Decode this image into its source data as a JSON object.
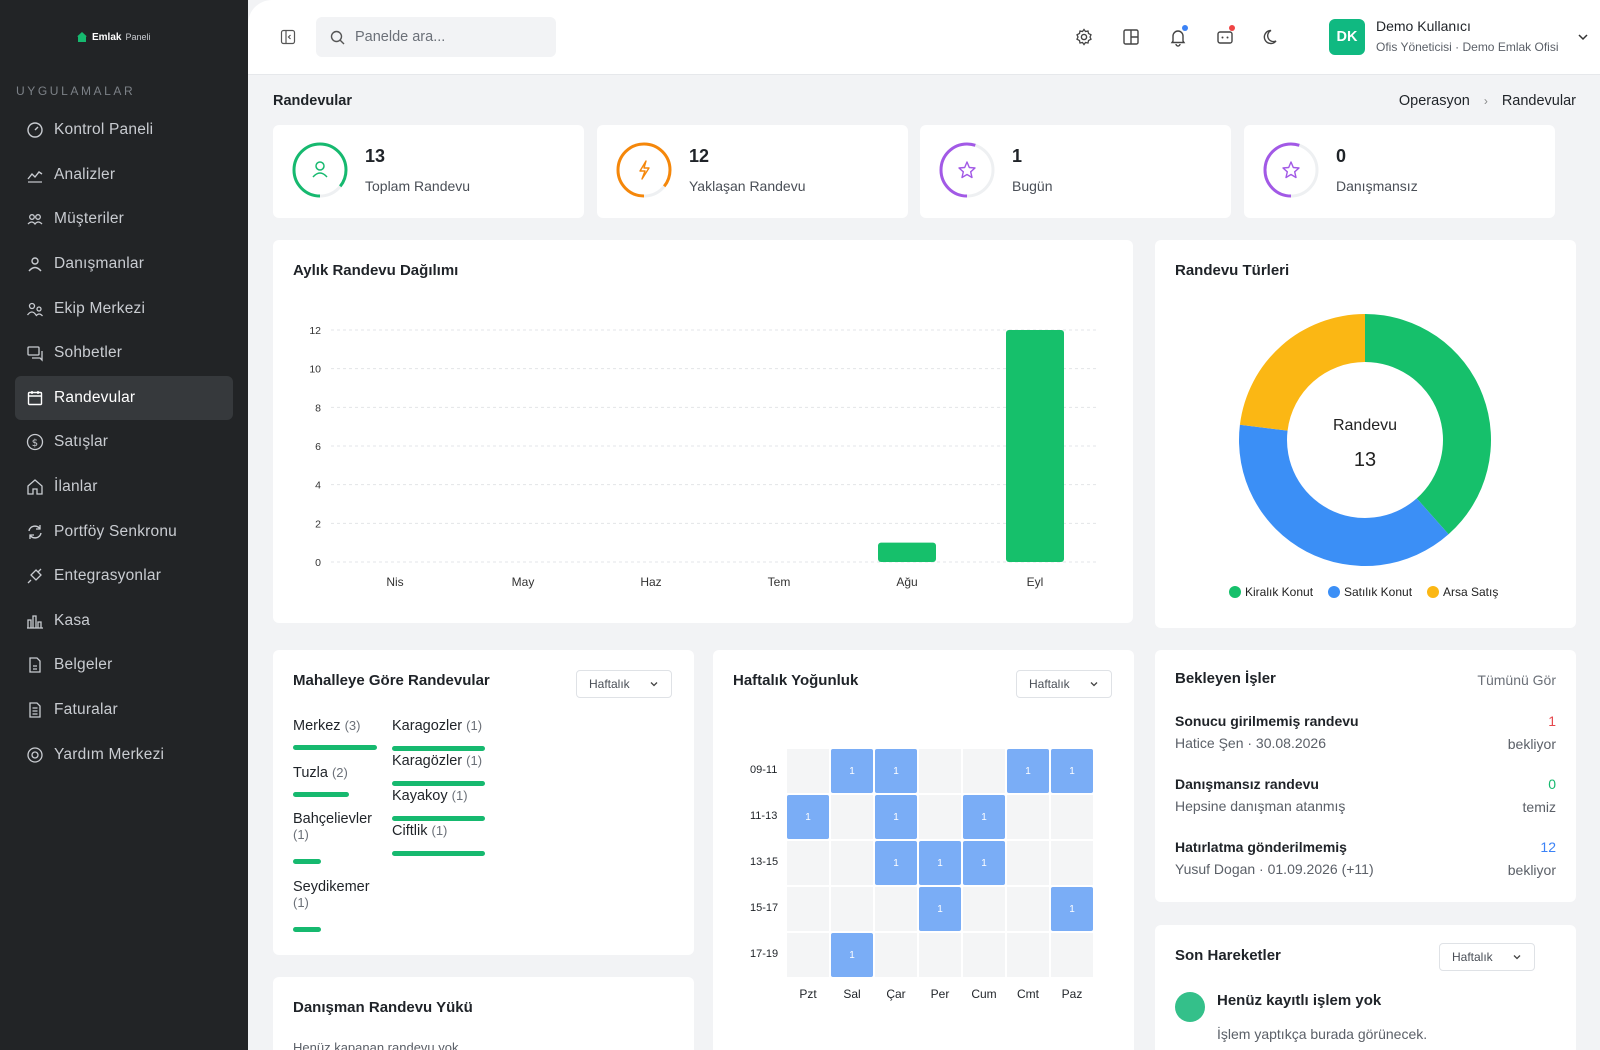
{
  "brand": {
    "name": "Emlak",
    "suffix": "Paneli"
  },
  "sidebar": {
    "section": "UYGULAMALAR",
    "items": [
      {
        "label": "Kontrol Paneli",
        "icon": "dashboard-icon"
      },
      {
        "label": "Analizler",
        "icon": "analytics-icon"
      },
      {
        "label": "Müşteriler",
        "icon": "customers-icon"
      },
      {
        "label": "Danışmanlar",
        "icon": "user-icon"
      },
      {
        "label": "Ekip Merkezi",
        "icon": "team-icon"
      },
      {
        "label": "Sohbetler",
        "icon": "chat-icon"
      },
      {
        "label": "Randevular",
        "icon": "calendar-icon",
        "active": true
      },
      {
        "label": "Satışlar",
        "icon": "dollar-icon"
      },
      {
        "label": "İlanlar",
        "icon": "home-icon"
      },
      {
        "label": "Portföy Senkronu",
        "icon": "sync-icon"
      },
      {
        "label": "Entegrasyonlar",
        "icon": "plug-icon"
      },
      {
        "label": "Kasa",
        "icon": "cash-icon"
      },
      {
        "label": "Belgeler",
        "icon": "document-icon"
      },
      {
        "label": "Faturalar",
        "icon": "invoice-icon"
      },
      {
        "label": "Yardım Merkezi",
        "icon": "help-icon"
      }
    ]
  },
  "topbar": {
    "search_placeholder": "Panelde ara...",
    "user": {
      "initials": "DK",
      "name": "Demo Kullanıcı",
      "role": "Ofis Yöneticisi · Demo Emlak Ofisi"
    }
  },
  "page": {
    "title": "Randevular",
    "breadcrumb": [
      "Operasyon",
      "Randevular"
    ]
  },
  "stats": [
    {
      "value": "13",
      "label": "Toplam Randevu",
      "color": "#16b96f",
      "icon": "user-icon"
    },
    {
      "value": "12",
      "label": "Yaklaşan Randevu",
      "color": "#f5870a",
      "icon": "bolt-icon"
    },
    {
      "value": "1",
      "label": "Bugün",
      "color": "#a259e6",
      "icon": "star-icon"
    },
    {
      "value": "0",
      "label": "Danışmansız",
      "color": "#a259e6",
      "icon": "star-icon"
    }
  ],
  "monthly": {
    "title": "Aylık Randevu Dağılımı"
  },
  "chart_data": [
    {
      "type": "bar",
      "title": "Aylık Randevu Dağılımı",
      "categories": [
        "Nis",
        "May",
        "Haz",
        "Tem",
        "Ağu",
        "Eyl"
      ],
      "values": [
        0,
        0,
        0,
        0,
        1,
        12
      ],
      "yticks": [
        0,
        2,
        4,
        6,
        8,
        10,
        12
      ],
      "ylim": [
        0,
        12
      ],
      "color": "#16c06b",
      "grid": true
    },
    {
      "type": "pie",
      "title": "Randevu Türleri",
      "center_label": "Randevu",
      "center_value": "13",
      "slices": [
        {
          "name": "Kiralık Konut",
          "value": 5,
          "color": "#16c06b"
        },
        {
          "name": "Satılık Konut",
          "value": 5,
          "color": "#3b8ff6"
        },
        {
          "name": "Arsa Satış",
          "value": 3,
          "color": "#fbb714"
        }
      ],
      "legend": "bottom"
    },
    {
      "type": "heatmap",
      "title": "Haftalık Yoğunluk",
      "x": [
        "Pzt",
        "Sal",
        "Çar",
        "Per",
        "Cum",
        "Cmt",
        "Paz"
      ],
      "y": [
        "09-11",
        "11-13",
        "13-15",
        "15-17",
        "17-19"
      ],
      "values": [
        [
          0,
          1,
          1,
          0,
          0,
          1,
          1
        ],
        [
          1,
          0,
          1,
          0,
          1,
          0,
          0
        ],
        [
          0,
          0,
          1,
          1,
          1,
          0,
          0
        ],
        [
          0,
          0,
          0,
          1,
          0,
          0,
          1
        ],
        [
          0,
          1,
          0,
          0,
          0,
          0,
          0
        ]
      ]
    }
  ],
  "types": {
    "title": "Randevu Türleri"
  },
  "neighborhood": {
    "title": "Mahalleye Göre Randevular",
    "filter": "Haftalık",
    "items": [
      {
        "name": "Merkez",
        "count": "(3)",
        "fill": 1.0
      },
      {
        "name": "Tuzla",
        "count": "(2)",
        "fill": 0.67
      },
      {
        "name": "Bahçelievler",
        "count": "(1)",
        "fill": 0.33
      },
      {
        "name": "Seydikemer",
        "count": "(1)",
        "fill": 0.33
      },
      {
        "name": "Karagozler",
        "count": "(1)",
        "fill": 1.0
      },
      {
        "name": "Karagözler",
        "count": "(1)",
        "fill": 1.0
      },
      {
        "name": "Kayakoy",
        "count": "(1)",
        "fill": 1.0
      },
      {
        "name": "Ciftlik",
        "count": "(1)",
        "fill": 1.0
      }
    ]
  },
  "weekly": {
    "title": "Haftalık Yoğunluk",
    "filter": "Haftalık"
  },
  "pending": {
    "title": "Bekleyen İşler",
    "see_all": "Tümünü Gör",
    "items": [
      {
        "title": "Sonucu girilmemiş randevu",
        "sub": "Hatice Şen · 30.08.2026",
        "count": "1",
        "status": "bekliyor",
        "color": "#e5484d"
      },
      {
        "title": "Danışmansız randevu",
        "sub": "Hepsine danışman atanmış",
        "count": "0",
        "status": "temiz",
        "color": "#16b96f"
      },
      {
        "title": "Hatırlatma gönderilmemiş",
        "sub": "Yusuf Dogan · 01.09.2026 (+11)",
        "count": "12",
        "status": "bekliyor",
        "color": "#3b82f6"
      }
    ]
  },
  "activity": {
    "title": "Son Hareketler",
    "filter": "Haftalık",
    "empty_title": "Henüz kayıtlı işlem yok",
    "empty_sub": "İşlem yaptıkça burada görünecek."
  },
  "advisor_load": {
    "title": "Danışman Randevu Yükü",
    "empty": "Henüz kapanan randevu yok"
  }
}
